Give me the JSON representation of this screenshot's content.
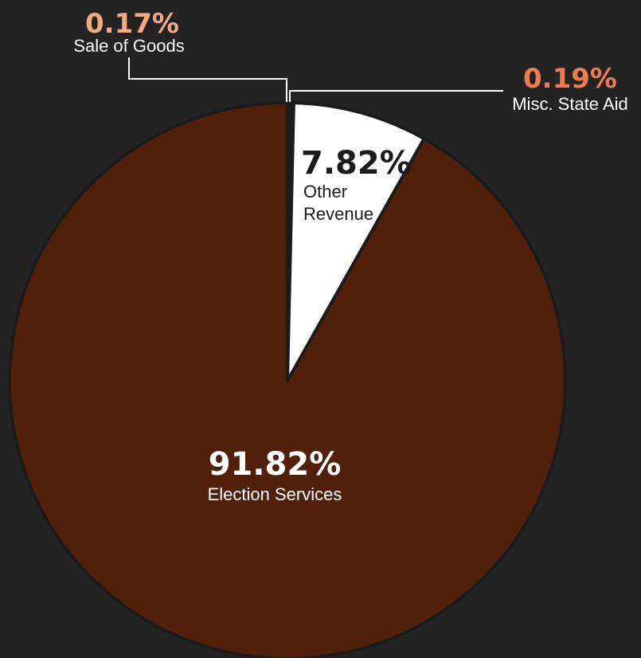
{
  "chart_data": {
    "type": "pie",
    "title": "",
    "slices": [
      {
        "label": "Sale of Goods",
        "label_lines": [
          "Sale of Goods"
        ],
        "value_label": "0.17%",
        "value": 0.17,
        "color": "#5f2008"
      },
      {
        "label": "Misc. State Aid",
        "label_lines": [
          "Misc. State Aid"
        ],
        "value_label": "0.19%",
        "value": 0.19,
        "color": "#3a1408"
      },
      {
        "label": "Other Revenue",
        "label_lines": [
          "Other",
          "Revenue"
        ],
        "value_label": "7.82%",
        "value": 7.82,
        "color": "#ffffff"
      },
      {
        "label": "Election Services",
        "label_lines": [
          "Election Services"
        ],
        "value_label": "91.82%",
        "value": 91.82,
        "color": "#51200a"
      }
    ],
    "colors": {
      "background": "#232323",
      "slice_border": "#1b1b1b",
      "callout_value": "#f07c4a",
      "callout_value_light": "#f5a882",
      "callout_line": "#ffffff",
      "inside_text_on_light": "#1b1b1b",
      "inside_text_on_dark": "#ffffff"
    }
  }
}
